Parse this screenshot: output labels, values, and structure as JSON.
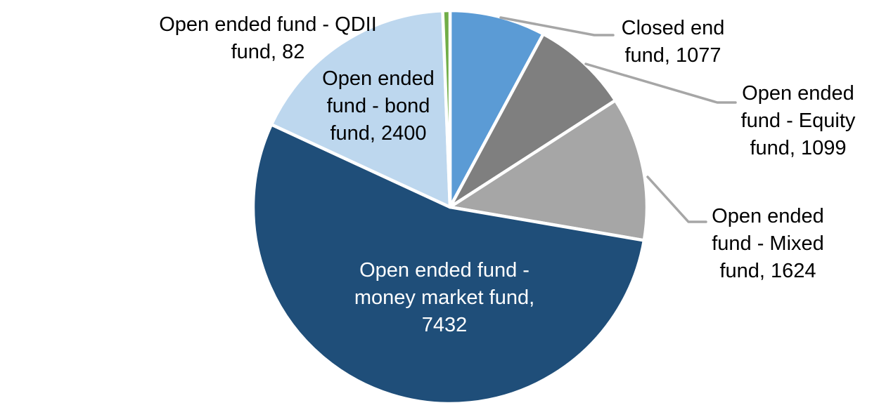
{
  "chart_data": {
    "type": "pie",
    "title": "",
    "legend": "none",
    "background": "#FFFFFF",
    "slice_border_color": "#FFFFFF",
    "leader_line_color": "#A6A6A6",
    "total": 13714,
    "categories": [
      "Closed end fund",
      "Open ended fund - Equity fund",
      "Open ended fund - Mixed fund",
      "Open ended fund - money market fund",
      "Open ended fund - bond fund",
      "Open ended fund - QDII fund"
    ],
    "values": [
      1077,
      1099,
      1624,
      7432,
      2400,
      82
    ],
    "start_angle_deg": 0,
    "direction": "clockwise",
    "slices": [
      {
        "key": "closed-end-fund",
        "name": "Closed end fund",
        "value": 1077,
        "color": "#5B9BD5",
        "label_color": "#000000",
        "label_lines": [
          "Closed end",
          "fund, 1077"
        ]
      },
      {
        "key": "equity-fund",
        "name": "Open ended fund - Equity fund",
        "value": 1099,
        "color": "#7F7F7F",
        "label_color": "#000000",
        "label_lines": [
          "Open ended",
          "fund - Equity",
          "fund, 1099"
        ]
      },
      {
        "key": "mixed-fund",
        "name": "Open ended fund - Mixed fund",
        "value": 1624,
        "color": "#A6A6A6",
        "label_color": "#000000",
        "label_lines": [
          "Open ended",
          "fund - Mixed",
          "fund, 1624"
        ]
      },
      {
        "key": "money-market-fund",
        "name": "Open ended fund - money market fund",
        "value": 7432,
        "color": "#1F4E79",
        "label_color": "#FFFFFF",
        "label_lines": [
          "Open ended fund -",
          "money market fund,",
          "7432"
        ]
      },
      {
        "key": "bond-fund",
        "name": "Open ended fund - bond fund",
        "value": 2400,
        "color": "#BDD7EE",
        "label_color": "#000000",
        "label_lines": [
          "Open ended",
          "fund - bond",
          "fund, 2400"
        ]
      },
      {
        "key": "qdii-fund",
        "name": "Open ended fund - QDII fund",
        "value": 82,
        "color": "#70AD47",
        "label_color": "#000000",
        "label_lines": [
          "Open ended fund - QDII",
          "fund, 82"
        ]
      }
    ]
  }
}
